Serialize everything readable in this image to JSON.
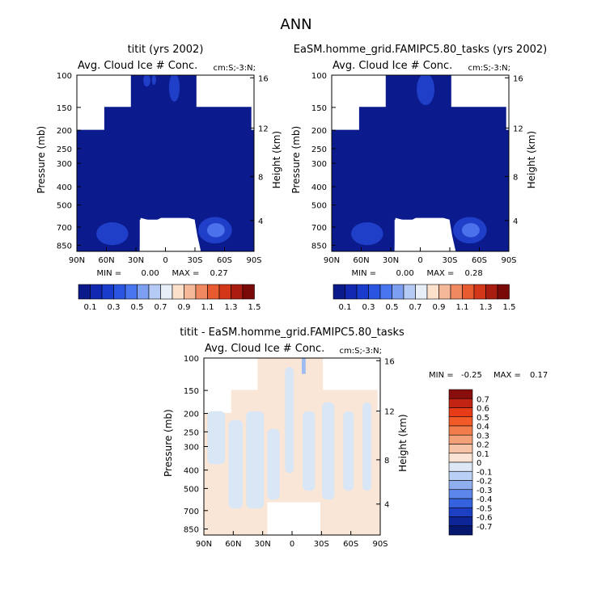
{
  "page_title": "ANN",
  "chart_data": [
    {
      "type": "heatmap",
      "title": "titit (yrs 2002)",
      "subtitle": "Avg. Cloud Ice # Conc.",
      "note": "cm:S;-3:N;",
      "ylabel": "Pressure (mb)",
      "y2label": "Height (km)",
      "xticks": [
        "90N",
        "60N",
        "30N",
        "0",
        "30S",
        "60S",
        "90S"
      ],
      "yticks": [
        "100",
        "150",
        "200",
        "250",
        "300",
        "400",
        "500",
        "700",
        "850"
      ],
      "y2ticks": [
        "16",
        "12",
        "8",
        "4"
      ],
      "min_label": "MIN =",
      "min_value": "0.00",
      "max_label": "MAX =",
      "max_value": "0.27",
      "field_max": 0.27
    },
    {
      "type": "heatmap",
      "title": "EaSM.homme_grid.FAMIPC5.80_tasks (yrs 2002)",
      "subtitle": "Avg. Cloud Ice # Conc.",
      "note": "cm:S;-3:N;",
      "ylabel": "Pressure (mb)",
      "y2label": "Height (km)",
      "xticks": [
        "90N",
        "60N",
        "30N",
        "0",
        "30S",
        "60S",
        "90S"
      ],
      "yticks": [
        "100",
        "150",
        "200",
        "250",
        "300",
        "400",
        "500",
        "700",
        "850"
      ],
      "y2ticks": [
        "16",
        "12",
        "8",
        "4"
      ],
      "min_label": "MIN =",
      "min_value": "0.00",
      "max_label": "MAX =",
      "max_value": "0.28",
      "field_max": 0.28
    },
    {
      "type": "heatmap",
      "title": "titit - EaSM.homme_grid.FAMIPC5.80_tasks",
      "subtitle": "Avg. Cloud Ice # Conc.",
      "note": "cm:S;-3:N;",
      "ylabel": "Pressure (mb)",
      "y2label": "Height (km)",
      "xticks": [
        "90N",
        "60N",
        "30N",
        "0",
        "30S",
        "60S",
        "90S"
      ],
      "yticks": [
        "100",
        "150",
        "200",
        "250",
        "300",
        "400",
        "500",
        "700",
        "850"
      ],
      "y2ticks": [
        "16",
        "12",
        "8",
        "4"
      ],
      "min_label": "MIN =",
      "min_value": "-0.25",
      "max_label": "MAX =",
      "max_value": "0.17",
      "field_min": -0.25,
      "field_max": 0.17
    }
  ],
  "colorbar_main": {
    "labels": [
      "0.1",
      "0.3",
      "0.5",
      "0.7",
      "0.9",
      "1.1",
      "1.3",
      "1.5"
    ],
    "colors": [
      "#0a1a8a",
      "#1228b0",
      "#1a3ccc",
      "#2a55e0",
      "#4a75f0",
      "#7d9ff2",
      "#b5cbf5",
      "#e8eef8",
      "#fbe0cc",
      "#f5b898",
      "#f08860",
      "#e85a30",
      "#d4361a",
      "#aa1c10",
      "#7a0a08"
    ]
  },
  "colorbar_diff": {
    "labels": [
      "0.7",
      "0.6",
      "0.5",
      "0.4",
      "0.3",
      "0.2",
      "0.1",
      "0",
      "-0.1",
      "-0.2",
      "-0.3",
      "-0.4",
      "-0.5",
      "-0.6",
      "-0.7"
    ],
    "colors": [
      "#8a0d0d",
      "#c22312",
      "#e83c18",
      "#f25a28",
      "#f27d4c",
      "#f3a078",
      "#f7c3a6",
      "#fbe4d4",
      "#dde8f6",
      "#b9cff3",
      "#8faeef",
      "#5d86ea",
      "#3562df",
      "#1d3fc4",
      "#0d2597",
      "#061770"
    ]
  },
  "colors": {
    "dark_blue": "#0b1b8e",
    "mid_blue": "#1f3fc8",
    "light_blue": "#4b72ea",
    "peach": "#fae6d6",
    "pale_blue": "#d9e6f6"
  }
}
